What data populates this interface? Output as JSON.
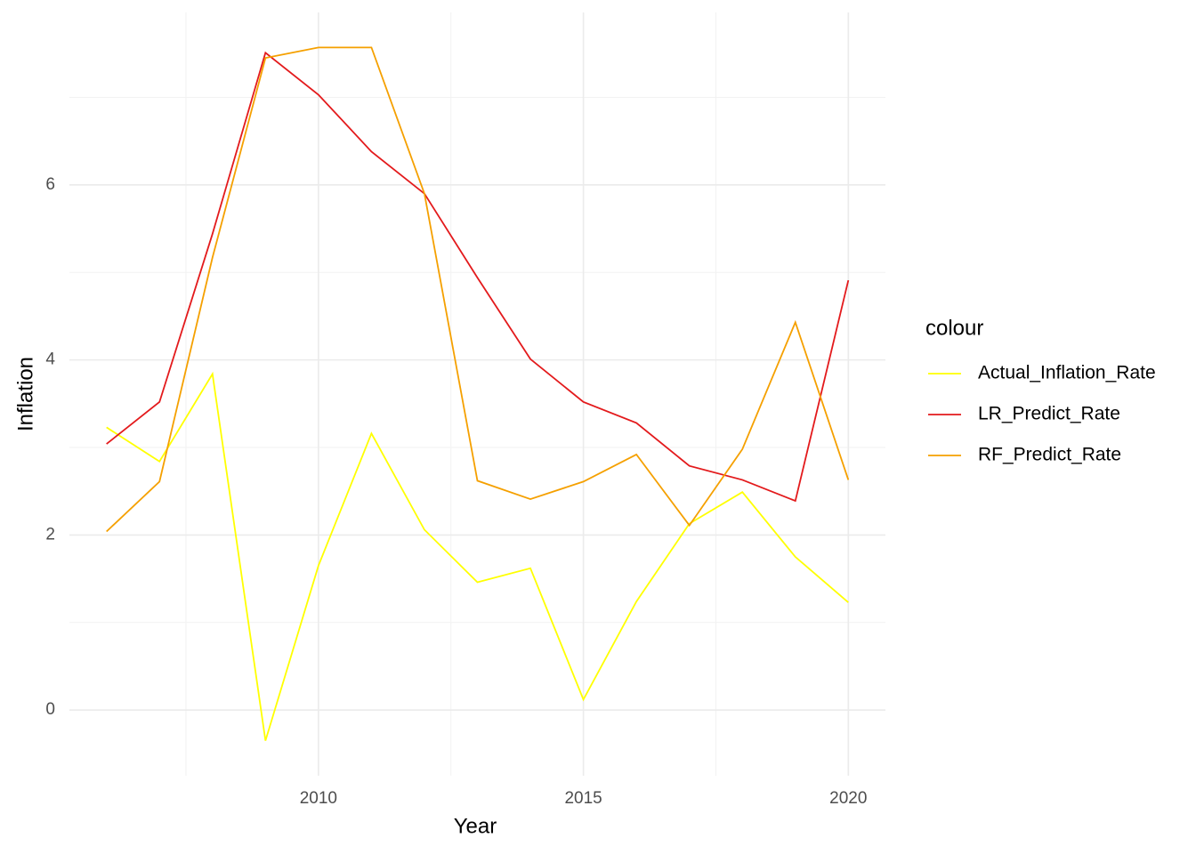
{
  "chart_data": {
    "type": "line",
    "x_label": "Year",
    "y_label": "Inflation",
    "legend_title": "colour",
    "x": [
      2006,
      2007,
      2008,
      2009,
      2010,
      2011,
      2012,
      2013,
      2014,
      2015,
      2016,
      2017,
      2018,
      2019,
      2020
    ],
    "series": [
      {
        "name": "Actual_Inflation_Rate",
        "color": "#ffff00",
        "values": [
          3.23,
          2.84,
          3.84,
          -0.35,
          1.65,
          3.16,
          2.06,
          1.46,
          1.62,
          0.12,
          1.24,
          2.13,
          2.49,
          1.75,
          1.23
        ]
      },
      {
        "name": "LR_Predict_Rate",
        "color": "#e31a1c",
        "values": [
          3.04,
          3.52,
          5.44,
          7.51,
          7.03,
          6.38,
          5.9,
          4.94,
          4.01,
          3.52,
          3.28,
          2.79,
          2.63,
          2.39,
          4.91
        ]
      },
      {
        "name": "RF_Predict_Rate",
        "color": "#f5a000",
        "values": [
          2.04,
          2.61,
          5.17,
          7.45,
          7.57,
          7.57,
          5.9,
          2.62,
          2.41,
          2.61,
          2.92,
          2.11,
          2.98,
          4.43,
          2.63
        ]
      }
    ],
    "xlim": [
      2005.3,
      2020.7
    ],
    "xticks": [
      2010,
      2015,
      2020
    ],
    "x_minor_ticks": [
      2007.5,
      2012.5,
      2017.5
    ],
    "ylim": [
      -0.75,
      7.97
    ],
    "yticks": [
      0,
      2,
      4,
      6
    ],
    "y_minor_ticks": [
      1,
      3,
      5,
      7
    ],
    "grid": true,
    "legend_position": "right"
  }
}
